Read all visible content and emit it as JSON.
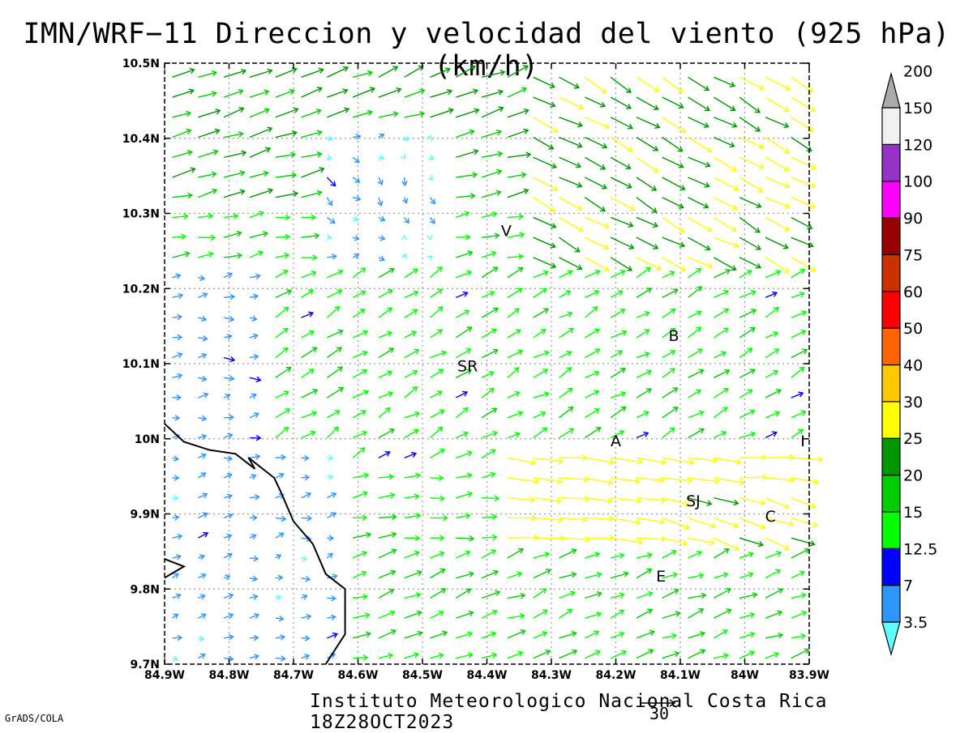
{
  "title": "IMN/WRF−11 Direccion y velocidad del viento (925 hPa)(km/h)",
  "credit": "Instituto Meteorologico Nacional Costa Rica 18Z28OCT2023",
  "software": "GrADS/COLA",
  "reference_vector": {
    "label": "30",
    "value_kmh": 30
  },
  "map": {
    "lat_range": [
      9.7,
      10.5
    ],
    "lon_range": [
      -84.9,
      -83.9
    ],
    "lat_ticks": [
      "9.7N",
      "9.8N",
      "9.9N",
      "10N",
      "10.1N",
      "10.2N",
      "10.3N",
      "10.4N",
      "10.5N"
    ],
    "lon_ticks": [
      "84.9W",
      "84.8W",
      "84.7W",
      "84.6W",
      "84.5W",
      "84.4W",
      "84.3W",
      "84.2W",
      "84.1W",
      "84W",
      "83.9W"
    ],
    "grid": "dotted",
    "coastline_color": "#000000",
    "place_labels": [
      {
        "text": "V",
        "lon": -84.37,
        "lat": 10.27
      },
      {
        "text": "SR",
        "lon": -84.43,
        "lat": 10.09
      },
      {
        "text": "B",
        "lon": -84.11,
        "lat": 10.13
      },
      {
        "text": "A",
        "lon": -84.2,
        "lat": 9.99
      },
      {
        "text": "I",
        "lon": -83.91,
        "lat": 9.99
      },
      {
        "text": "SJ",
        "lon": -84.08,
        "lat": 9.91
      },
      {
        "text": "C",
        "lon": -83.96,
        "lat": 9.89
      },
      {
        "text": "E",
        "lon": -84.13,
        "lat": 9.81
      }
    ]
  },
  "colorbar": {
    "labels": [
      "3.5",
      "7",
      "12.5",
      "15",
      "20",
      "25",
      "30",
      "40",
      "50",
      "60",
      "75",
      "90",
      "100",
      "120",
      "150",
      "200"
    ],
    "colors": [
      "#60ffff",
      "#3096ff",
      "#0000ff",
      "#00ff00",
      "#00cc00",
      "#009600",
      "#ffff00",
      "#ffc800",
      "#ff6400",
      "#ff0000",
      "#c83200",
      "#960000",
      "#ff00ff",
      "#9632c8",
      "#f0f0f0",
      "#aaaaaa"
    ]
  },
  "wind_field": {
    "description_source": "model wind vectors",
    "rows": 30,
    "cols": 25
  }
}
